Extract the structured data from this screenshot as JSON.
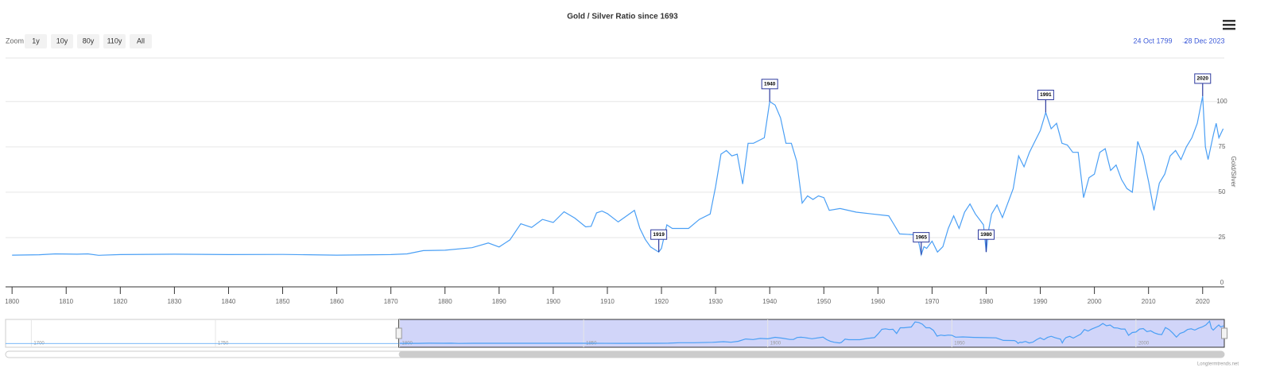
{
  "chart_data": {
    "type": "line",
    "title": "Gold / Silver Ratio since 1693",
    "zoom_label": "Zoom",
    "zoom_buttons": [
      "1y",
      "10y",
      "80y",
      "110y",
      "All"
    ],
    "range_from": "24 Oct 1799",
    "range_arrow": "→",
    "range_to": "28 Dec 2023",
    "y_axis_label": "Gold/Silver",
    "credit": "Longtermtrends.net",
    "xlim": [
      1798.8,
      2024
    ],
    "xticks": [
      1800,
      1810,
      1820,
      1830,
      1840,
      1850,
      1860,
      1870,
      1880,
      1890,
      1900,
      1910,
      1920,
      1930,
      1940,
      1950,
      1960,
      1970,
      1980,
      1990,
      2000,
      2010,
      2020
    ],
    "ylim": [
      0,
      124
    ],
    "yticks": [
      0,
      25,
      50,
      75,
      100
    ],
    "grid": true,
    "series": [
      {
        "name": "Gold/Silver",
        "color": "#4a9ff5",
        "x": [
          1800,
          1805,
          1808,
          1812,
          1814,
          1816,
          1820,
          1830,
          1840,
          1850,
          1860,
          1870,
          1873,
          1876,
          1878,
          1880,
          1885,
          1888,
          1890,
          1892,
          1894,
          1896,
          1898,
          1900,
          1902,
          1904,
          1906,
          1907,
          1908,
          1909,
          1910,
          1912,
          1915,
          1916,
          1917,
          1918,
          1919.5,
          1920,
          1921,
          1922,
          1925,
          1927,
          1929,
          1930,
          1931,
          1932,
          1933,
          1934,
          1935,
          1936,
          1937,
          1939,
          1940,
          1941,
          1942,
          1943,
          1944,
          1945,
          1946,
          1947,
          1948,
          1949,
          1950,
          1951,
          1953,
          1956,
          1959,
          1962,
          1963,
          1964,
          1967,
          1967.5,
          1968,
          1968.5,
          1969,
          1970,
          1971,
          1972,
          1973,
          1974,
          1975,
          1976,
          1977,
          1978,
          1979,
          1979.5,
          1980,
          1980.5,
          1981,
          1982,
          1983,
          1984,
          1985,
          1986,
          1987,
          1988,
          1989,
          1990,
          1991,
          1992,
          1993,
          1994,
          1995,
          1996,
          1997,
          1998,
          1999,
          2000,
          2001,
          2002,
          2003,
          2004,
          2005,
          2006,
          2007,
          2008,
          2009,
          2010,
          2011,
          2012,
          2013,
          2014,
          2015,
          2016,
          2017,
          2018,
          2019,
          2020,
          2020.5,
          2021,
          2022,
          2022.5,
          2023,
          2023.8
        ],
        "values": [
          15.3,
          15.5,
          16,
          15.8,
          16,
          15.2,
          15.6,
          15.8,
          15.6,
          15.7,
          15.3,
          15.6,
          16,
          17.8,
          17.9,
          18,
          19.4,
          22,
          19.8,
          23.7,
          32.6,
          30.6,
          35,
          33.3,
          39.2,
          35.7,
          30.9,
          31.2,
          38.6,
          39.6,
          38.2,
          33.6,
          40,
          30.1,
          24,
          19.8,
          17,
          19,
          32,
          30,
          30,
          35,
          38,
          53,
          71,
          73,
          70,
          71,
          54.5,
          77,
          77,
          80,
          100,
          98,
          91,
          77,
          77,
          67,
          44,
          48,
          46,
          48,
          47,
          40,
          41,
          39,
          38,
          37,
          32,
          27,
          26.5,
          23,
          15.5,
          20,
          19,
          23,
          17,
          20,
          30,
          37,
          30,
          39,
          43.5,
          38,
          34,
          32,
          17,
          30,
          38,
          43,
          36,
          44,
          52,
          70,
          64,
          72,
          78,
          84,
          94,
          85,
          88,
          77,
          76,
          72,
          72,
          47,
          58,
          60,
          72,
          74,
          62,
          65,
          57,
          52,
          50,
          78,
          70,
          56,
          40,
          55,
          60,
          70,
          73,
          68,
          75,
          80,
          88,
          103,
          75,
          68,
          82,
          88,
          80,
          85
        ]
      }
    ],
    "annotations": [
      {
        "label": "1919",
        "x": 1919.5,
        "y": 17
      },
      {
        "label": "1940",
        "x": 1940,
        "y": 100
      },
      {
        "label": "1965",
        "x": 1968,
        "y": 15.5
      },
      {
        "label": "1980",
        "x": 1980,
        "y": 17
      },
      {
        "label": "1991",
        "x": 1991,
        "y": 94
      },
      {
        "label": "2020",
        "x": 2020,
        "y": 103
      }
    ],
    "navigator": {
      "xlim": [
        1693,
        2024
      ],
      "xticks": [
        1700,
        1750,
        1800,
        1850,
        1900,
        1950,
        2000
      ],
      "ylim": [
        0,
        110
      ],
      "selected": [
        1799.8,
        2024
      ]
    }
  }
}
